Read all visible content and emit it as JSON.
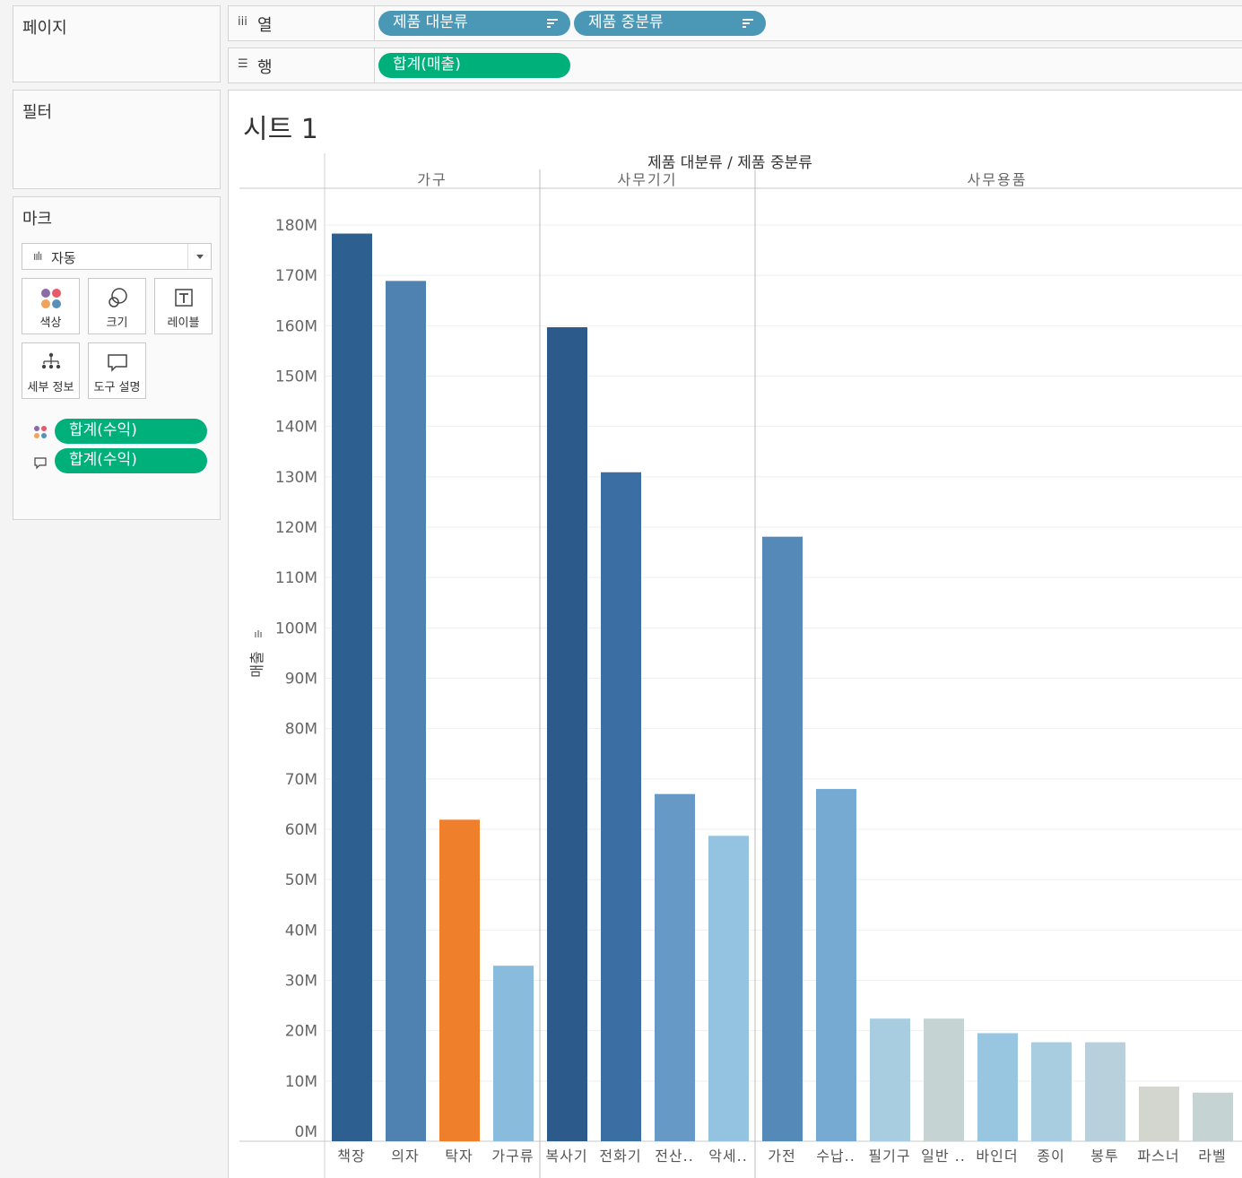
{
  "sidebar": {
    "pages_title": "페이지",
    "filters_title": "필터",
    "marks": {
      "title": "마크",
      "type_label": "자동",
      "cards": {
        "color": "색상",
        "size": "크기",
        "label": "레이블",
        "detail": "세부 정보",
        "tooltip": "도구 설명"
      },
      "pills": [
        "합계(수익)",
        "합계(수익)"
      ]
    }
  },
  "shelves": {
    "columns_label": "열",
    "rows_label": "행",
    "columns_pills": [
      "제품 대분류",
      "제품 중분류"
    ],
    "rows_pills": [
      "합계(매출)"
    ]
  },
  "sheet_title": "시트 1",
  "colors": {
    "accent_green": "#00b07b",
    "accent_blue": "#4b98b6"
  },
  "chart_data": {
    "type": "bar",
    "header_title": "제품 대분류 / 제품 중분류",
    "ylabel": "매출",
    "ylim": [
      0,
      185000000
    ],
    "yticks": [
      0,
      10000000,
      20000000,
      30000000,
      40000000,
      50000000,
      60000000,
      70000000,
      80000000,
      90000000,
      100000000,
      110000000,
      120000000,
      130000000,
      140000000,
      150000000,
      160000000,
      170000000,
      180000000
    ],
    "ytick_labels": [
      "0M",
      "10M",
      "20M",
      "30M",
      "40M",
      "50M",
      "60M",
      "70M",
      "80M",
      "90M",
      "100M",
      "110M",
      "120M",
      "130M",
      "140M",
      "150M",
      "160M",
      "170M",
      "180M"
    ],
    "grid": true,
    "groups": [
      {
        "name": "가구",
        "categories": [
          "책장",
          "의자",
          "탁자",
          "가구류"
        ],
        "values": [
          178300000,
          168900000,
          61900000,
          32900000
        ],
        "colors": [
          "#2e5f91",
          "#4f82b1",
          "#f07f2b",
          "#89bbdc"
        ]
      },
      {
        "name": "사무기기",
        "categories": [
          "복사기",
          "전화기",
          "전산..",
          "악세.."
        ],
        "values": [
          159700000,
          130900000,
          67000000,
          58700000
        ],
        "colors": [
          "#2c5a8a",
          "#3b6ea2",
          "#6699c6",
          "#93c3e0"
        ]
      },
      {
        "name": "사무용품",
        "categories": [
          "가전",
          "수납..",
          "필기구",
          "일반 ..",
          "바인더",
          "종이",
          "봉투",
          "파스너",
          "라벨"
        ],
        "values": [
          118100000,
          68000000,
          22400000,
          22400000,
          19500000,
          17700000,
          17700000,
          8900000,
          7700000
        ],
        "colors": [
          "#5589b8",
          "#76aad3",
          "#a8cde1",
          "#c6d3d3",
          "#98c5e0",
          "#a8cde1",
          "#b7d0dc",
          "#d2d6ce",
          "#c6d3d3"
        ]
      }
    ]
  }
}
